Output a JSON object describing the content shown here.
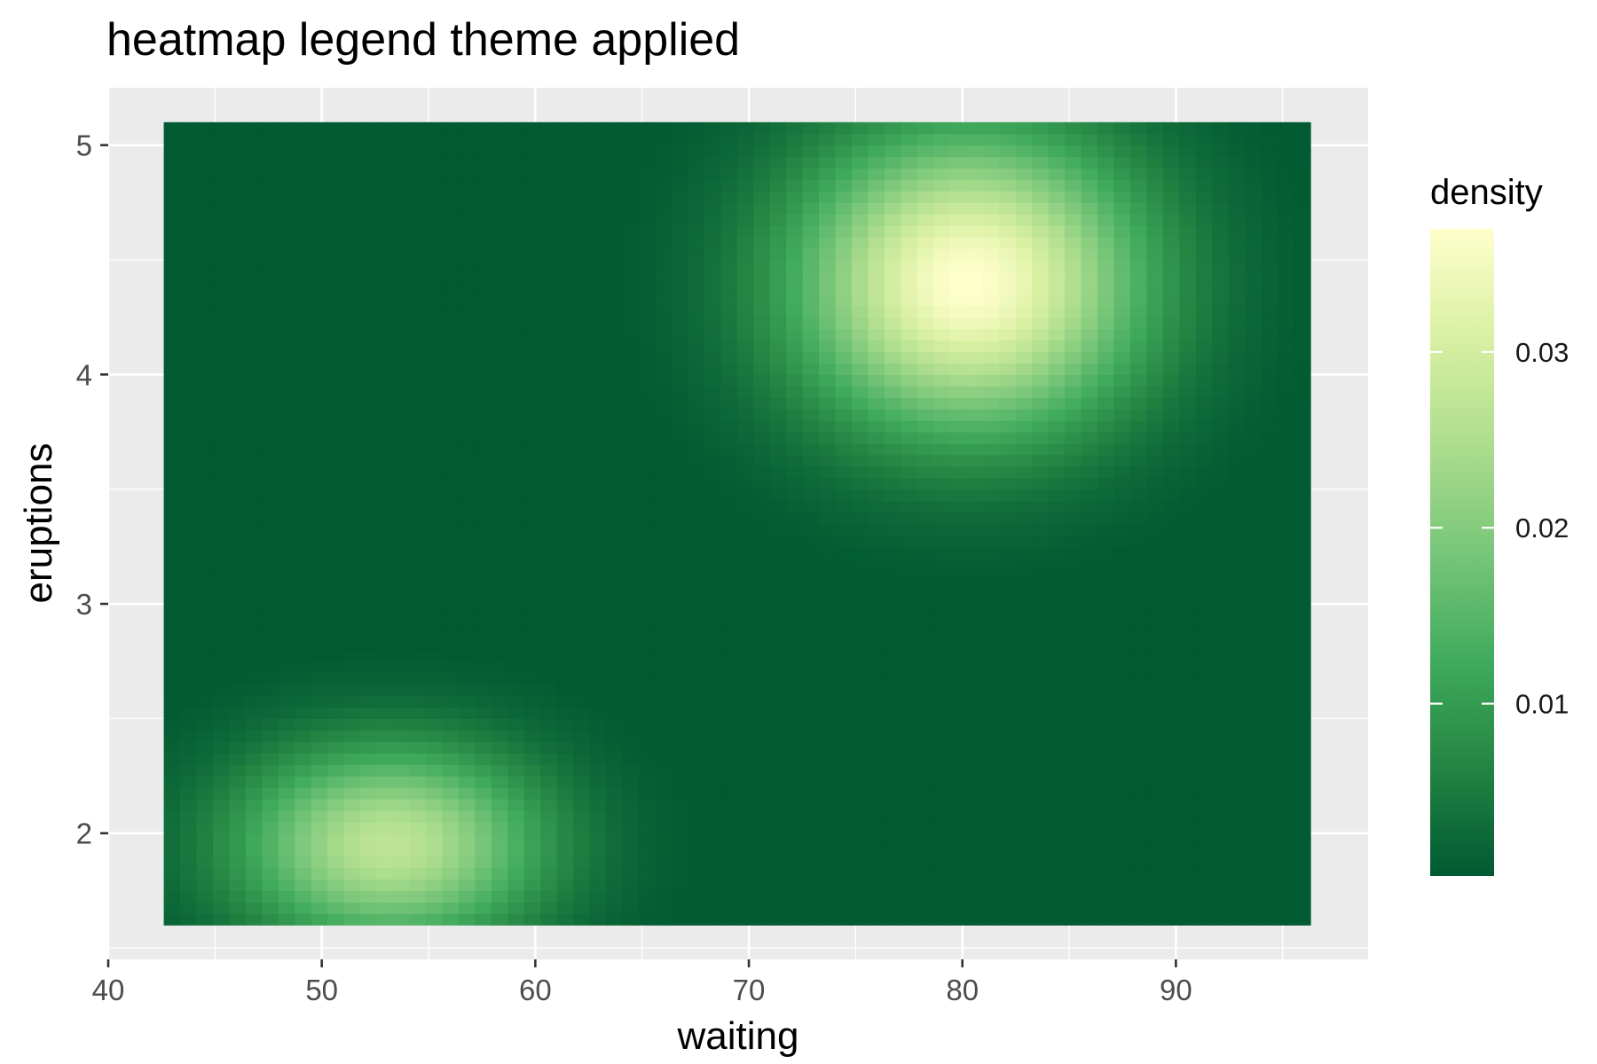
{
  "chart_data": {
    "type": "heatmap",
    "title": "heatmap legend theme applied",
    "xlabel": "waiting",
    "ylabel": "eruptions",
    "x_ticks": [
      40,
      50,
      60,
      70,
      80,
      90
    ],
    "y_ticks": [
      2,
      3,
      4,
      5
    ],
    "xlim": [
      40,
      99
    ],
    "ylim": [
      1.45,
      5.25
    ],
    "data_extent": {
      "x": [
        42.6,
        96.3
      ],
      "y": [
        1.6,
        5.1
      ]
    },
    "grid": true,
    "legend": {
      "title": "density",
      "position": "right",
      "range": [
        0.0002,
        0.037
      ],
      "ticks": [
        0.01,
        0.02,
        0.03
      ],
      "tick_labels": [
        "0.01",
        "0.02",
        "0.03"
      ]
    },
    "colorscale": [
      "#005a32",
      "#238443",
      "#41ab5d",
      "#78c679",
      "#addd8e",
      "#d9f0a3",
      "#ffffcc"
    ],
    "density_peaks": [
      {
        "x": 80.3,
        "y": 4.4,
        "density": 0.037
      },
      {
        "x": 53.2,
        "y": 1.95,
        "density": 0.027
      }
    ]
  }
}
